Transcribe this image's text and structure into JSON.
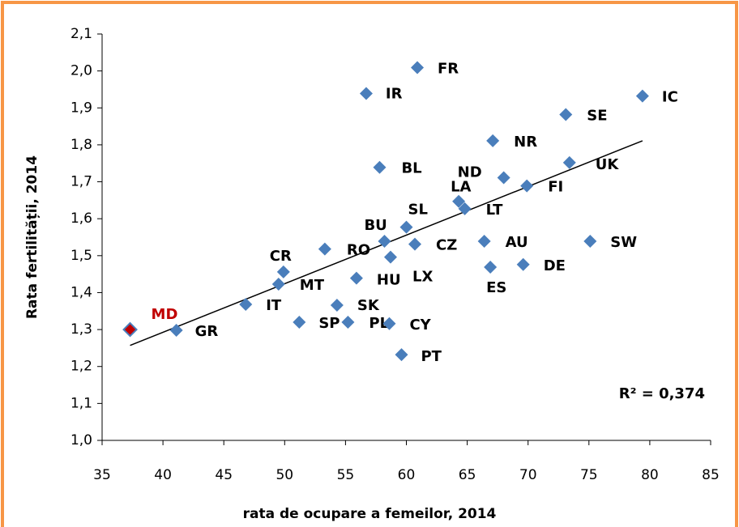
{
  "chart_data": {
    "type": "scatter",
    "xlabel": "rata de ocupare a femeilor, 2014",
    "ylabel": "Rata fertilității, 2014",
    "annotation": "R² = 0,374",
    "labels": [
      "MD",
      "GR",
      "IT",
      "MT",
      "CR",
      "SP",
      "RO",
      "SK",
      "PL",
      "HU",
      "IR",
      "BL",
      "BU",
      "PT",
      "CY",
      "LX",
      "SL",
      "CZ",
      "FR",
      "LA",
      "LT",
      "AU",
      "ES",
      "NR",
      "ND",
      "FI",
      "DE",
      "SE",
      "UK",
      "SW",
      "IC"
    ],
    "x": [
      37.3,
      41.1,
      46.8,
      49.5,
      49.9,
      51.2,
      53.3,
      54.3,
      55.2,
      55.9,
      56.7,
      57.8,
      58.2,
      59.6,
      58.6,
      58.7,
      60.0,
      60.7,
      60.9,
      64.3,
      64.8,
      66.4,
      66.9,
      67.1,
      68.0,
      69.9,
      69.6,
      73.1,
      73.4,
      75.1,
      79.4
    ],
    "y": [
      1.3,
      1.298,
      1.368,
      1.423,
      1.456,
      1.32,
      1.518,
      1.366,
      1.32,
      1.439,
      1.939,
      1.739,
      1.539,
      1.232,
      1.316,
      1.496,
      1.577,
      1.531,
      2.009,
      1.647,
      1.627,
      1.539,
      1.469,
      1.811,
      1.711,
      1.689,
      1.476,
      1.882,
      1.752,
      1.539,
      1.932
    ],
    "color": "#4a7ebb",
    "highlight_color": "#c00000",
    "trendline": {
      "x": [
        37.3,
        79.4
      ],
      "y": [
        1.257,
        1.811
      ],
      "color": "#000000"
    },
    "xlim": [
      35,
      85
    ],
    "xticks": [
      35,
      40,
      45,
      50,
      55,
      60,
      65,
      70,
      75,
      80,
      85
    ],
    "ylim": [
      1.0,
      2.1
    ],
    "yticks": [
      {
        "value": 1.0,
        "label": "1,0"
      },
      {
        "value": 1.1,
        "label": "1,1"
      },
      {
        "value": 1.2,
        "label": "1,2"
      },
      {
        "value": 1.3,
        "label": "1,3"
      },
      {
        "value": 1.4,
        "label": "1,4"
      },
      {
        "value": 1.5,
        "label": "1,5"
      },
      {
        "value": 1.6,
        "label": "1,6"
      },
      {
        "value": 1.7,
        "label": "1,7"
      },
      {
        "value": 1.8,
        "label": "1,8"
      },
      {
        "value": 1.9,
        "label": "1,9"
      },
      {
        "value": 2.0,
        "label": "2,0"
      },
      {
        "value": 2.1,
        "label": "2,1"
      }
    ],
    "grid": false
  }
}
